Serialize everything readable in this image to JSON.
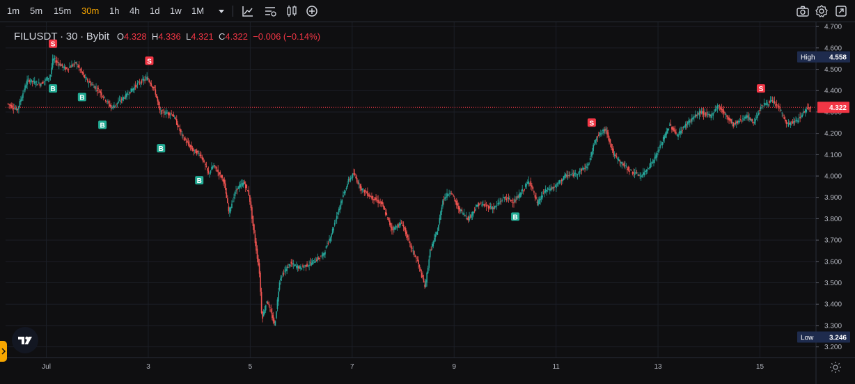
{
  "toolbar": {
    "timeframes": [
      "1m",
      "5m",
      "15m",
      "30m",
      "1h",
      "4h",
      "1d",
      "1w",
      "1M"
    ],
    "active_timeframe": "30m",
    "icons": [
      "chevron-down-icon",
      "indicators-icon",
      "templates-icon",
      "chart-type-icon",
      "add-icon",
      "camera-icon",
      "settings-icon",
      "fullscreen-icon"
    ]
  },
  "legend": {
    "symbol": "FILUSDT",
    "sep1": "·",
    "interval": "30",
    "sep2": "·",
    "exchange": "Bybit",
    "o_label": "O",
    "o_value": "4.328",
    "h_label": "H",
    "h_value": "4.336",
    "l_label": "L",
    "l_value": "4.321",
    "c_label": "C",
    "c_value": "4.322",
    "change": "−0.006 (−0.14%)"
  },
  "colors": {
    "up": "#26a69a",
    "down": "#ef5350",
    "last_price": "#f23645",
    "tag_bg": "#1e2b4d",
    "accent": "#f7a600"
  },
  "chart_data": {
    "type": "candlestick",
    "symbol": "FILUSDT",
    "interval": "30",
    "exchange": "Bybit",
    "ylim": [
      3.15,
      4.72
    ],
    "y_ticks": [
      "4.700",
      "4.600",
      "4.500",
      "4.400",
      "4.300",
      "4.200",
      "4.100",
      "4.000",
      "3.900",
      "3.800",
      "3.700",
      "3.600",
      "3.500",
      "3.400",
      "3.300",
      "3.200"
    ],
    "x_labels": [
      {
        "label": "Jul",
        "day": 1
      },
      {
        "label": "3",
        "day": 3
      },
      {
        "label": "5",
        "day": 5
      },
      {
        "label": "7",
        "day": 7
      },
      {
        "label": "9",
        "day": 9
      },
      {
        "label": "11",
        "day": 11
      },
      {
        "label": "13",
        "day": 13
      },
      {
        "label": "15",
        "day": 15
      }
    ],
    "x_range_days": [
      0.2,
      16.1
    ],
    "last_price": {
      "label": "4.322",
      "value": 4.322
    },
    "high": {
      "label": "High",
      "value_label": "4.558",
      "value": 4.558
    },
    "low": {
      "label": "Low",
      "value_label": "3.246",
      "value": 3.246
    },
    "price_path": [
      [
        0.25,
        4.34
      ],
      [
        0.45,
        4.31
      ],
      [
        0.65,
        4.45
      ],
      [
        0.9,
        4.43
      ],
      [
        1.1,
        4.47
      ],
      [
        1.15,
        4.55
      ],
      [
        1.4,
        4.5
      ],
      [
        1.6,
        4.53
      ],
      [
        1.8,
        4.45
      ],
      [
        2.05,
        4.4
      ],
      [
        2.3,
        4.32
      ],
      [
        2.6,
        4.38
      ],
      [
        2.8,
        4.43
      ],
      [
        3.0,
        4.46
      ],
      [
        3.15,
        4.4
      ],
      [
        3.25,
        4.3
      ],
      [
        3.5,
        4.29
      ],
      [
        3.7,
        4.18
      ],
      [
        3.9,
        4.12
      ],
      [
        4.05,
        4.1
      ],
      [
        4.2,
        4.01
      ],
      [
        4.3,
        4.05
      ],
      [
        4.5,
        3.98
      ],
      [
        4.6,
        3.83
      ],
      [
        4.75,
        3.94
      ],
      [
        4.9,
        3.97
      ],
      [
        5.0,
        3.91
      ],
      [
        5.1,
        3.72
      ],
      [
        5.2,
        3.55
      ],
      [
        5.25,
        3.33
      ],
      [
        5.35,
        3.42
      ],
      [
        5.5,
        3.3
      ],
      [
        5.6,
        3.52
      ],
      [
        5.8,
        3.59
      ],
      [
        6.0,
        3.57
      ],
      [
        6.2,
        3.59
      ],
      [
        6.45,
        3.63
      ],
      [
        6.6,
        3.72
      ],
      [
        6.8,
        3.88
      ],
      [
        6.95,
        3.98
      ],
      [
        7.05,
        4.01
      ],
      [
        7.2,
        3.94
      ],
      [
        7.4,
        3.9
      ],
      [
        7.6,
        3.87
      ],
      [
        7.8,
        3.75
      ],
      [
        8.0,
        3.78
      ],
      [
        8.15,
        3.68
      ],
      [
        8.3,
        3.6
      ],
      [
        8.45,
        3.48
      ],
      [
        8.55,
        3.65
      ],
      [
        8.7,
        3.75
      ],
      [
        8.8,
        3.89
      ],
      [
        8.95,
        3.93
      ],
      [
        9.1,
        3.85
      ],
      [
        9.3,
        3.8
      ],
      [
        9.5,
        3.87
      ],
      [
        9.8,
        3.85
      ],
      [
        10.0,
        3.9
      ],
      [
        10.2,
        3.88
      ],
      [
        10.3,
        3.91
      ],
      [
        10.5,
        3.98
      ],
      [
        10.65,
        3.87
      ],
      [
        10.8,
        3.93
      ],
      [
        11.0,
        3.95
      ],
      [
        11.2,
        4.0
      ],
      [
        11.4,
        4.01
      ],
      [
        11.65,
        4.05
      ],
      [
        11.8,
        4.18
      ],
      [
        12.0,
        4.22
      ],
      [
        12.15,
        4.1
      ],
      [
        12.3,
        4.06
      ],
      [
        12.5,
        4.02
      ],
      [
        12.7,
        4.0
      ],
      [
        12.95,
        4.08
      ],
      [
        13.1,
        4.16
      ],
      [
        13.25,
        4.24
      ],
      [
        13.4,
        4.19
      ],
      [
        13.6,
        4.25
      ],
      [
        13.85,
        4.3
      ],
      [
        14.05,
        4.28
      ],
      [
        14.2,
        4.33
      ],
      [
        14.5,
        4.24
      ],
      [
        14.75,
        4.28
      ],
      [
        14.9,
        4.25
      ],
      [
        15.05,
        4.33
      ],
      [
        15.25,
        4.35
      ],
      [
        15.4,
        4.32
      ],
      [
        15.55,
        4.24
      ],
      [
        15.75,
        4.26
      ],
      [
        15.95,
        4.32
      ],
      [
        16.0,
        4.32
      ]
    ],
    "signals": [
      {
        "type": "S",
        "day": 1.13,
        "price": 4.62
      },
      {
        "type": "B",
        "day": 1.13,
        "price": 4.41
      },
      {
        "type": "B",
        "day": 1.7,
        "price": 4.37
      },
      {
        "type": "B",
        "day": 2.1,
        "price": 4.24
      },
      {
        "type": "S",
        "day": 3.02,
        "price": 4.54
      },
      {
        "type": "B",
        "day": 3.25,
        "price": 4.13
      },
      {
        "type": "B",
        "day": 4.0,
        "price": 3.98
      },
      {
        "type": "B",
        "day": 10.2,
        "price": 3.81
      },
      {
        "type": "S",
        "day": 11.7,
        "price": 4.25
      },
      {
        "type": "S",
        "day": 15.02,
        "price": 4.41
      }
    ]
  }
}
